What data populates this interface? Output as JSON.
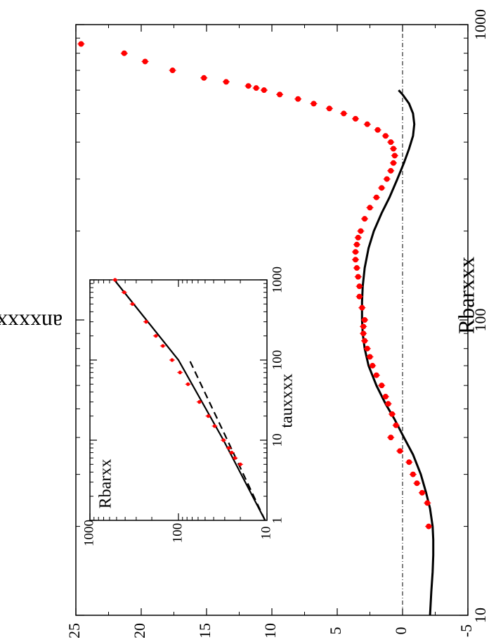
{
  "chart_data": [
    {
      "id": "main",
      "type": "scatter",
      "orientation": "rotated 90 degrees counter-clockwise",
      "xlabel": "Rbarxxx",
      "ylabel": "anxxxx",
      "xscale": "log",
      "xlim": [
        10,
        1000
      ],
      "ylim": [
        -5,
        25
      ],
      "xticks": [
        "10",
        "100",
        "1000"
      ],
      "yticks": [
        "-5",
        "0",
        "5",
        "10",
        "15",
        "20",
        "25"
      ],
      "reference_line": {
        "y": 0,
        "style": "dash-dot"
      },
      "series": [
        {
          "style": "points",
          "color": "#ff0000",
          "x": [
            20,
            24,
            26,
            28,
            30,
            33,
            36,
            40,
            44,
            48,
            52,
            55,
            60,
            65,
            70,
            75,
            80,
            85,
            90,
            95,
            100,
            110,
            120,
            130,
            140,
            150,
            160,
            170,
            180,
            190,
            200,
            220,
            240,
            260,
            280,
            300,
            320,
            340,
            360,
            380,
            400,
            420,
            440,
            460,
            480,
            500,
            520,
            540,
            560,
            580,
            600,
            610,
            620,
            640,
            660,
            700,
            750,
            800,
            860
          ],
          "y": [
            -2.0,
            -1.9,
            -1.5,
            -1.1,
            -0.8,
            -0.5,
            0.2,
            0.9,
            0.5,
            0.8,
            1.1,
            1.3,
            1.6,
            2.0,
            2.3,
            2.5,
            2.7,
            2.9,
            3.0,
            3.0,
            2.9,
            3.1,
            3.3,
            3.3,
            3.4,
            3.5,
            3.6,
            3.6,
            3.5,
            3.4,
            3.2,
            2.9,
            2.5,
            2.0,
            1.6,
            1.2,
            0.9,
            0.7,
            0.6,
            0.7,
            0.9,
            1.3,
            1.9,
            2.7,
            3.6,
            4.5,
            5.6,
            6.8,
            8.0,
            9.4,
            10.6,
            11.2,
            11.8,
            13.5,
            15.2,
            17.6,
            19.7,
            21.3,
            24.6
          ]
        },
        {
          "style": "solid-line",
          "color": "#000000",
          "x": [
            10,
            12,
            14,
            16,
            18,
            20,
            23,
            26,
            30,
            35,
            40,
            46,
            52,
            60,
            70,
            80,
            90,
            100,
            115,
            130,
            150,
            175,
            200,
            230,
            260,
            300,
            340,
            380,
            420,
            460,
            500,
            540,
            580,
            600
          ],
          "y": [
            -2.1,
            -2.2,
            -2.3,
            -2.35,
            -2.35,
            -2.3,
            -2.1,
            -1.8,
            -1.4,
            -0.8,
            -0.1,
            0.6,
            1.3,
            2.0,
            2.6,
            2.9,
            3.05,
            3.1,
            3.1,
            3.05,
            2.9,
            2.6,
            2.2,
            1.6,
            1.0,
            0.4,
            -0.1,
            -0.5,
            -0.8,
            -0.9,
            -0.8,
            -0.5,
            0.0,
            0.3
          ]
        }
      ]
    },
    {
      "id": "inset",
      "type": "line",
      "xlabel": "tauxxxx",
      "ylabel": "Rbarxx",
      "xscale": "log",
      "yscale": "log",
      "xlim": [
        1,
        1000
      ],
      "ylim": [
        10,
        1000
      ],
      "xticks": [
        "1",
        "10",
        "100",
        "1000"
      ],
      "yticks": [
        "10",
        "100",
        "1000"
      ],
      "series": [
        {
          "style": "points",
          "color": "#ff0000",
          "x": [
            5,
            6,
            7,
            8,
            10,
            15,
            20,
            30,
            50,
            70,
            100,
            150,
            200,
            300,
            500,
            700,
            1000
          ],
          "y": [
            20,
            23,
            25,
            27,
            31,
            39,
            46,
            58,
            78,
            96,
            118,
            150,
            180,
            232,
            330,
            410,
            520
          ]
        },
        {
          "style": "solid-line",
          "color": "#000000",
          "x": [
            1,
            10,
            100,
            1000
          ],
          "y": [
            10.5,
            31,
            100,
            530
          ]
        },
        {
          "style": "dashed-line",
          "color": "#000000",
          "x": [
            1,
            10,
            100
          ],
          "y": [
            10.5,
            28,
            75
          ]
        }
      ]
    }
  ]
}
